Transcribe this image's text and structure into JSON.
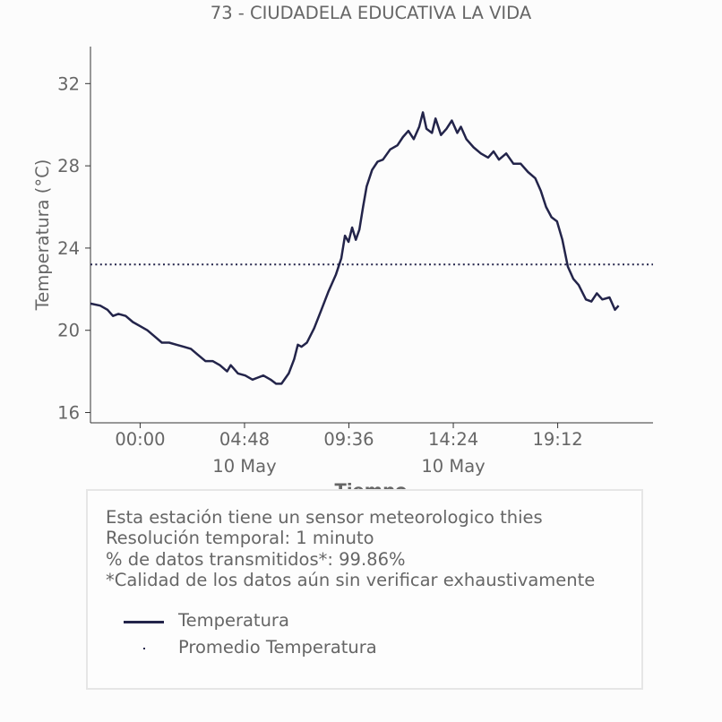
{
  "chart_data": {
    "type": "line",
    "title": "73 - CIUDADELA EDUCATIVA LA VIDA",
    "xlabel": "Tiempo",
    "ylabel": "Temperatura (°C)",
    "ylim": [
      15.5,
      33.8
    ],
    "xlim": [
      "2019-05-09 21:43",
      "2019-05-10 23:35"
    ],
    "x_ticks": [
      {
        "label": "00:00",
        "sublabel": "",
        "t": "2019-05-10 00:00"
      },
      {
        "label": "04:48",
        "sublabel": "10 May",
        "t": "2019-05-10 04:48"
      },
      {
        "label": "09:36",
        "sublabel": "",
        "t": "2019-05-10 09:36"
      },
      {
        "label": "14:24",
        "sublabel": "10 May",
        "t": "2019-05-10 14:24"
      },
      {
        "label": "19:12",
        "sublabel": "",
        "t": "2019-05-10 19:12"
      }
    ],
    "y_ticks": [
      16,
      20,
      24,
      28,
      32
    ],
    "grid": false,
    "legend_position": "bottom",
    "series": [
      {
        "name": "Temperatura",
        "color": "#23244a",
        "style": "solid",
        "points": [
          [
            "2019-05-09 21:43",
            21.3
          ],
          [
            "2019-05-09 22:10",
            21.2
          ],
          [
            "2019-05-09 22:30",
            21.0
          ],
          [
            "2019-05-09 22:45",
            20.7
          ],
          [
            "2019-05-09 23:00",
            20.8
          ],
          [
            "2019-05-09 23:20",
            20.7
          ],
          [
            "2019-05-09 23:40",
            20.4
          ],
          [
            "2019-05-10 00:00",
            20.2
          ],
          [
            "2019-05-10 00:20",
            20.0
          ],
          [
            "2019-05-10 00:40",
            19.7
          ],
          [
            "2019-05-10 01:00",
            19.4
          ],
          [
            "2019-05-10 01:20",
            19.4
          ],
          [
            "2019-05-10 01:40",
            19.3
          ],
          [
            "2019-05-10 02:00",
            19.2
          ],
          [
            "2019-05-10 02:20",
            19.1
          ],
          [
            "2019-05-10 02:40",
            18.8
          ],
          [
            "2019-05-10 03:00",
            18.5
          ],
          [
            "2019-05-10 03:20",
            18.5
          ],
          [
            "2019-05-10 03:40",
            18.3
          ],
          [
            "2019-05-10 04:00",
            18.0
          ],
          [
            "2019-05-10 04:10",
            18.3
          ],
          [
            "2019-05-10 04:30",
            17.9
          ],
          [
            "2019-05-10 04:50",
            17.8
          ],
          [
            "2019-05-10 05:10",
            17.6
          ],
          [
            "2019-05-10 05:25",
            17.7
          ],
          [
            "2019-05-10 05:40",
            17.8
          ],
          [
            "2019-05-10 06:00",
            17.6
          ],
          [
            "2019-05-10 06:15",
            17.4
          ],
          [
            "2019-05-10 06:30",
            17.4
          ],
          [
            "2019-05-10 06:50",
            17.9
          ],
          [
            "2019-05-10 07:05",
            18.6
          ],
          [
            "2019-05-10 07:15",
            19.3
          ],
          [
            "2019-05-10 07:25",
            19.2
          ],
          [
            "2019-05-10 07:40",
            19.4
          ],
          [
            "2019-05-10 08:00",
            20.1
          ],
          [
            "2019-05-10 08:20",
            21.0
          ],
          [
            "2019-05-10 08:40",
            21.9
          ],
          [
            "2019-05-10 09:00",
            22.7
          ],
          [
            "2019-05-10 09:15",
            23.5
          ],
          [
            "2019-05-10 09:25",
            24.6
          ],
          [
            "2019-05-10 09:35",
            24.3
          ],
          [
            "2019-05-10 09:45",
            25.0
          ],
          [
            "2019-05-10 09:55",
            24.4
          ],
          [
            "2019-05-10 10:05",
            24.9
          ],
          [
            "2019-05-10 10:15",
            26.0
          ],
          [
            "2019-05-10 10:25",
            27.0
          ],
          [
            "2019-05-10 10:40",
            27.8
          ],
          [
            "2019-05-10 10:55",
            28.2
          ],
          [
            "2019-05-10 11:10",
            28.3
          ],
          [
            "2019-05-10 11:30",
            28.8
          ],
          [
            "2019-05-10 11:50",
            29.0
          ],
          [
            "2019-05-10 12:05",
            29.4
          ],
          [
            "2019-05-10 12:20",
            29.7
          ],
          [
            "2019-05-10 12:35",
            29.3
          ],
          [
            "2019-05-10 12:50",
            29.9
          ],
          [
            "2019-05-10 13:00",
            30.6
          ],
          [
            "2019-05-10 13:10",
            29.8
          ],
          [
            "2019-05-10 13:25",
            29.6
          ],
          [
            "2019-05-10 13:35",
            30.3
          ],
          [
            "2019-05-10 13:50",
            29.5
          ],
          [
            "2019-05-10 14:05",
            29.8
          ],
          [
            "2019-05-10 14:20",
            30.2
          ],
          [
            "2019-05-10 14:35",
            29.6
          ],
          [
            "2019-05-10 14:45",
            29.9
          ],
          [
            "2019-05-10 15:00",
            29.3
          ],
          [
            "2019-05-10 15:20",
            28.9
          ],
          [
            "2019-05-10 15:40",
            28.6
          ],
          [
            "2019-05-10 16:00",
            28.4
          ],
          [
            "2019-05-10 16:15",
            28.7
          ],
          [
            "2019-05-10 16:30",
            28.3
          ],
          [
            "2019-05-10 16:50",
            28.6
          ],
          [
            "2019-05-10 17:10",
            28.1
          ],
          [
            "2019-05-10 17:30",
            28.1
          ],
          [
            "2019-05-10 17:50",
            27.7
          ],
          [
            "2019-05-10 18:10",
            27.4
          ],
          [
            "2019-05-10 18:25",
            26.8
          ],
          [
            "2019-05-10 18:40",
            26.0
          ],
          [
            "2019-05-10 18:55",
            25.5
          ],
          [
            "2019-05-10 19:10",
            25.3
          ],
          [
            "2019-05-10 19:25",
            24.4
          ],
          [
            "2019-05-10 19:40",
            23.1
          ],
          [
            "2019-05-10 19:55",
            22.5
          ],
          [
            "2019-05-10 20:10",
            22.2
          ],
          [
            "2019-05-10 20:30",
            21.5
          ],
          [
            "2019-05-10 20:45",
            21.4
          ],
          [
            "2019-05-10 21:00",
            21.8
          ],
          [
            "2019-05-10 21:15",
            21.5
          ],
          [
            "2019-05-10 21:35",
            21.6
          ],
          [
            "2019-05-10 21:50",
            21.0
          ],
          [
            "2019-05-10 22:00",
            21.2
          ]
        ]
      },
      {
        "name": "Promedio Temperatura",
        "color": "#23244a",
        "style": "dotted",
        "value": 23.2
      }
    ]
  },
  "info": {
    "lines": [
      "Esta estación tiene un sensor meteorologico thies",
      "Resolución temporal: 1 minuto",
      "% de datos transmitidos*: 99.86%",
      "*Calidad de los datos aún sin verificar exhaustivamente"
    ]
  },
  "legend": {
    "items": [
      {
        "label": "Temperatura",
        "kind": "line"
      },
      {
        "label": "Promedio Temperatura",
        "kind": "dot"
      }
    ]
  },
  "colors": {
    "series": "#23244a",
    "text": "#666666",
    "axis": "#333333"
  }
}
